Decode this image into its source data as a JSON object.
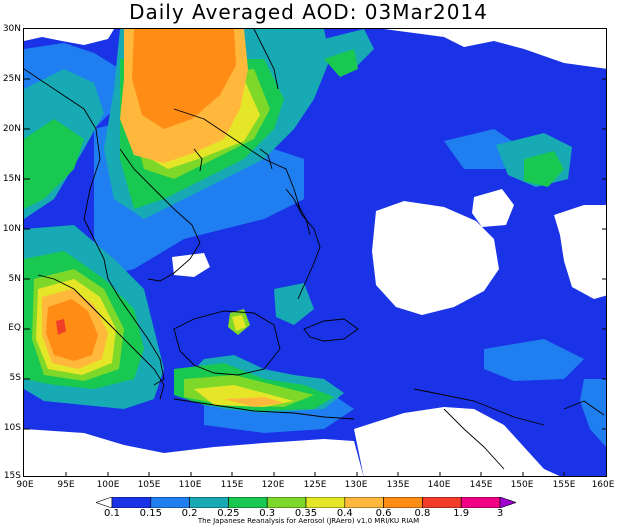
{
  "title": "Daily Averaged AOD: 03Mar2014",
  "lat_labels": [
    "30N",
    "25N",
    "20N",
    "15N",
    "10N",
    "5N",
    "EQ",
    "5S",
    "10S",
    "15S"
  ],
  "lon_labels": [
    "90E",
    "95E",
    "100E",
    "105E",
    "110E",
    "115E",
    "120E",
    "125E",
    "130E",
    "135E",
    "140E",
    "145E",
    "150E",
    "155E",
    "160E"
  ],
  "colorbar": {
    "labels": [
      "0.1",
      "0.15",
      "0.2",
      "0.25",
      "0.3",
      "0.35",
      "0.4",
      "0.6",
      "0.8",
      "1.9",
      "3"
    ],
    "colors": [
      "#ffffff",
      "#1a33e6",
      "#1f7ff0",
      "#17aab4",
      "#19c850",
      "#7dd82a",
      "#e6e628",
      "#ffb83c",
      "#ff8c14",
      "#f03c28",
      "#f00082",
      "#a000d2"
    ]
  },
  "credit": "The Japanese Reanalysis for Aerosol (JRAero) v1.0 MRI/KU RIAM"
}
